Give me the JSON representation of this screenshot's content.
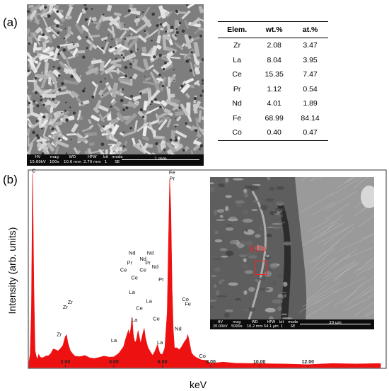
{
  "panels": {
    "a_label": "(a)",
    "b_label": "(b)"
  },
  "sem_a": {
    "hv_label": "HV",
    "hv_value": "15.00kV",
    "mag_label": "mag",
    "mag_value": "100x",
    "wd_label": "WD",
    "wd_value": "10.6 mm",
    "hfw_label": "HFW",
    "hfw_value": "2.70 mm",
    "bit_label": "bit",
    "bit_value": "1",
    "mode_label": "mode",
    "mode_value": "SE",
    "scale_label": "1 mm"
  },
  "table": {
    "headers": [
      "Elem.",
      "wt.%",
      "at.%"
    ],
    "rows": [
      [
        "Zr",
        "2.08",
        "3.47"
      ],
      [
        "La",
        "8.04",
        "3.95"
      ],
      [
        "Ce",
        "15.35",
        "7.47"
      ],
      [
        "Pr",
        "1.12",
        "0.54"
      ],
      [
        "Nd",
        "4.01",
        "1.89"
      ],
      [
        "Fe",
        "68.99",
        "84.14"
      ],
      [
        "Co",
        "0.40",
        "0.47"
      ]
    ]
  },
  "chart_data": {
    "type": "line",
    "xlabel": "keV",
    "ylabel": "Intensity (arb. units)",
    "xlim": [
      0.5,
      15.2
    ],
    "ylim": [
      0,
      1
    ],
    "x_ticks": [
      "2.00",
      "4.00",
      "6.00",
      "8.00",
      "10.00",
      "12.00"
    ],
    "x_tick_values": [
      2,
      4,
      6,
      8,
      10,
      12
    ],
    "series": [
      {
        "x": [
          0.5,
          0.55,
          0.6,
          0.65,
          0.7,
          0.75,
          0.8,
          0.85,
          0.9,
          0.95,
          1.0,
          1.1,
          1.2,
          1.3,
          1.4,
          1.5,
          1.6,
          1.7,
          1.8,
          1.9,
          2.0,
          2.05,
          2.1,
          2.2,
          2.3,
          2.4,
          2.6,
          2.8,
          3.0,
          3.2,
          3.4,
          3.6,
          3.8,
          4.0,
          4.2,
          4.4,
          4.5,
          4.6,
          4.65,
          4.7,
          4.75,
          4.8,
          4.85,
          4.9,
          4.95,
          5.0,
          5.1,
          5.2,
          5.25,
          5.3,
          5.4,
          5.5,
          5.6,
          5.7,
          5.8,
          5.9,
          6.0,
          6.1,
          6.2,
          6.3,
          6.35,
          6.4,
          6.45,
          6.5,
          6.6,
          6.7,
          6.8,
          6.9,
          7.0,
          7.05,
          7.1,
          7.2,
          7.3,
          7.4,
          7.6,
          7.8,
          8.0,
          8.5,
          9.0,
          10.0,
          11.0,
          12.0,
          13.0,
          14.0,
          15.0
        ],
        "y": [
          0.03,
          0.06,
          0.3,
          0.99,
          0.4,
          0.08,
          0.05,
          0.04,
          0.06,
          0.05,
          0.05,
          0.05,
          0.05,
          0.06,
          0.07,
          0.09,
          0.08,
          0.08,
          0.09,
          0.11,
          0.15,
          0.16,
          0.12,
          0.08,
          0.06,
          0.05,
          0.05,
          0.05,
          0.04,
          0.04,
          0.04,
          0.05,
          0.05,
          0.05,
          0.07,
          0.1,
          0.14,
          0.18,
          0.16,
          0.2,
          0.26,
          0.17,
          0.13,
          0.12,
          0.15,
          0.18,
          0.12,
          0.17,
          0.2,
          0.15,
          0.1,
          0.08,
          0.06,
          0.08,
          0.11,
          0.07,
          0.06,
          0.09,
          0.28,
          0.96,
          0.8,
          0.4,
          0.18,
          0.1,
          0.1,
          0.09,
          0.1,
          0.12,
          0.14,
          0.16,
          0.13,
          0.07,
          0.05,
          0.04,
          0.03,
          0.03,
          0.02,
          0.02,
          0.02,
          0.02,
          0.01,
          0.01,
          0.01,
          0.01,
          0.01
        ]
      }
    ],
    "peak_labels": [
      {
        "text": "C",
        "x": 0.7,
        "y": 0.995
      },
      {
        "text": "Fe",
        "x": 6.4,
        "y": 0.985
      },
      {
        "text": "Pr",
        "x": 6.4,
        "y": 0.955
      },
      {
        "text": "Nd",
        "x": 4.75,
        "y": 0.575
      },
      {
        "text": "Nd",
        "x": 5.5,
        "y": 0.575
      },
      {
        "text": "Nd",
        "x": 5.2,
        "y": 0.545
      },
      {
        "text": "Pr",
        "x": 4.65,
        "y": 0.525
      },
      {
        "text": "Pr",
        "x": 5.4,
        "y": 0.525
      },
      {
        "text": "Nd",
        "x": 5.7,
        "y": 0.505
      },
      {
        "text": "Ce",
        "x": 4.4,
        "y": 0.49
      },
      {
        "text": "Ce",
        "x": 5.2,
        "y": 0.49
      },
      {
        "text": "Ce",
        "x": 4.85,
        "y": 0.45
      },
      {
        "text": "Pr",
        "x": 5.95,
        "y": 0.44
      },
      {
        "text": "Zr",
        "x": 2.2,
        "y": 0.325
      },
      {
        "text": "Zr",
        "x": 2.0,
        "y": 0.3
      },
      {
        "text": "La",
        "x": 4.75,
        "y": 0.375
      },
      {
        "text": "La",
        "x": 5.45,
        "y": 0.33
      },
      {
        "text": "Co",
        "x": 6.95,
        "y": 0.34
      },
      {
        "text": "Fe",
        "x": 7.05,
        "y": 0.315
      },
      {
        "text": "Ce",
        "x": 5.05,
        "y": 0.295
      },
      {
        "text": "Ce",
        "x": 5.75,
        "y": 0.24
      },
      {
        "text": "Zr",
        "x": 1.75,
        "y": 0.16
      },
      {
        "text": "La",
        "x": 4.85,
        "y": 0.235
      },
      {
        "text": "Nd",
        "x": 6.65,
        "y": 0.19
      },
      {
        "text": "La",
        "x": 4.0,
        "y": 0.13
      },
      {
        "text": "La",
        "x": 5.9,
        "y": 0.12
      },
      {
        "text": "Co",
        "x": 7.65,
        "y": 0.05
      }
    ],
    "fill_color": "#ee1111"
  },
  "inset": {
    "eds_label": "EDS",
    "hv_label": "HV",
    "hv_value": "20.00kV",
    "mag_label": "mag",
    "mag_value": "5000x",
    "wd_label": "WD",
    "wd_value": "10.2 mm",
    "hfw_label": "HFW",
    "hfw_value": "54.1 μm",
    "bit_label": "bit",
    "bit_value": "1",
    "mode_label": "mode",
    "mode_value": "SE",
    "scale_label": "20 μm"
  }
}
